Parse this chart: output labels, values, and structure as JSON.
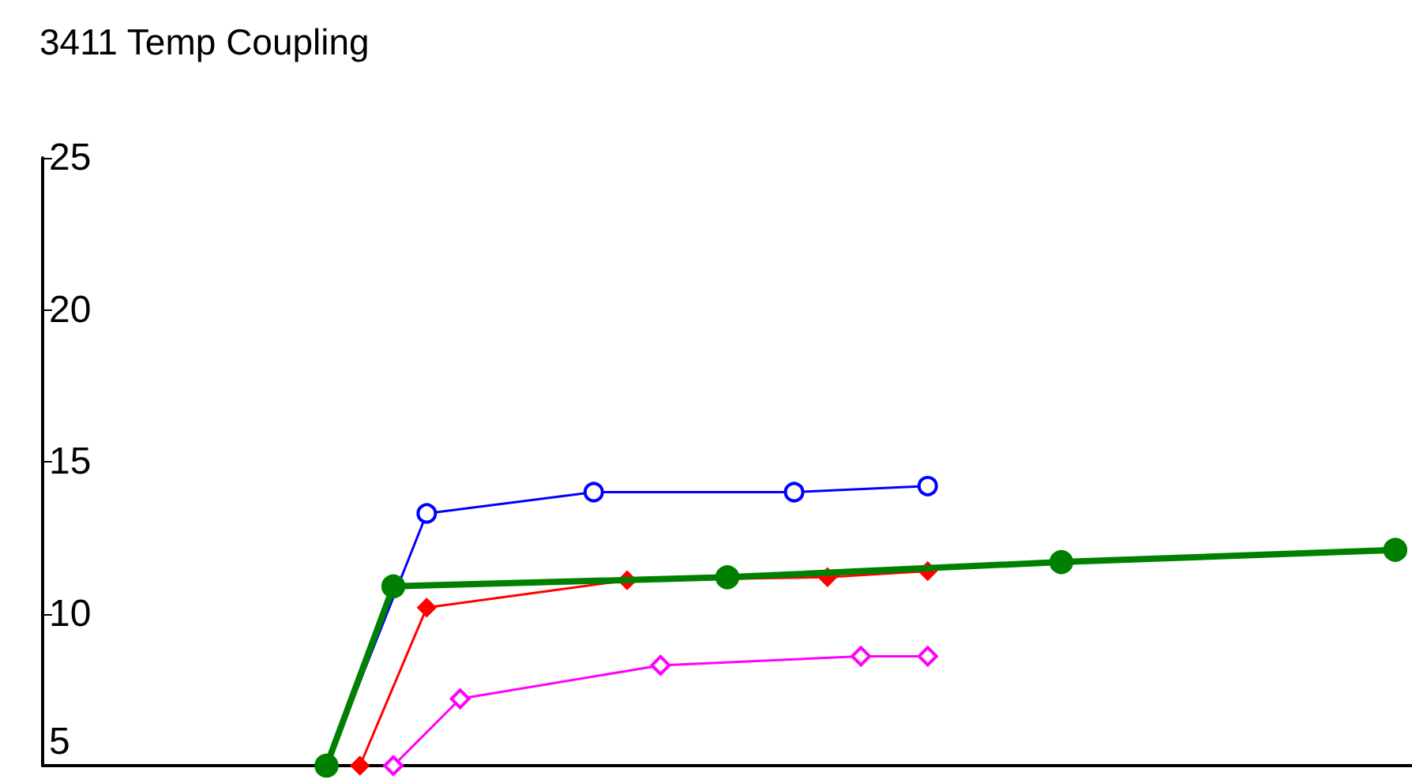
{
  "chart_data": {
    "type": "line",
    "title": "3411 Temp Coupling",
    "categories": [
      null,
      null,
      null,
      null,
      null,
      null,
      null,
      null,
      null,
      null,
      null,
      null,
      null,
      null,
      null,
      null,
      null,
      null,
      null,
      null,
      null,
      null,
      null,
      null,
      null,
      null,
      null,
      null,
      null,
      null,
      null,
      null,
      null,
      null,
      null,
      null,
      null,
      null,
      null,
      null,
      null
    ],
    "ylim": [
      5,
      25
    ],
    "yticks": [
      5,
      10,
      15,
      20,
      25
    ],
    "tick_labels": "y",
    "series": [
      {
        "color": "#0000ff",
        "marker": "circle",
        "values": [
          null,
          null,
          null,
          null,
          null,
          null,
          null,
          null,
          5,
          null,
          null,
          13.3,
          null,
          null,
          null,
          null,
          14.0,
          null,
          null,
          null,
          null,
          null,
          14.0,
          null,
          null,
          null,
          14.2,
          null,
          null,
          null,
          null,
          null,
          null,
          null,
          null,
          null,
          null,
          null,
          null,
          null,
          null
        ]
      },
      {
        "color": "#ff0000",
        "marker": "diamond",
        "values": [
          null,
          null,
          null,
          null,
          null,
          null,
          null,
          null,
          null,
          5,
          null,
          10.2,
          null,
          null,
          null,
          null,
          null,
          11.1,
          null,
          null,
          null,
          null,
          null,
          11.2,
          null,
          null,
          11.4,
          null,
          null,
          null,
          null,
          null,
          null,
          null,
          null,
          null,
          null,
          null,
          null,
          null,
          null
        ]
      },
      {
        "color": "#ff00ff",
        "marker": "diamond",
        "values": [
          null,
          null,
          null,
          null,
          null,
          null,
          null,
          null,
          null,
          null,
          5,
          null,
          7.2,
          null,
          null,
          null,
          null,
          null,
          8.3,
          null,
          null,
          null,
          null,
          null,
          8.6,
          null,
          8.6,
          null,
          null,
          null,
          null,
          null,
          null,
          null,
          null,
          null,
          null,
          null,
          null,
          null,
          null
        ]
      },
      {
        "color": "#008000",
        "marker": "circle",
        "values": [
          null,
          null,
          null,
          null,
          null,
          null,
          null,
          null,
          5,
          null,
          10.9,
          null,
          null,
          null,
          null,
          null,
          null,
          null,
          null,
          null,
          11.2,
          null,
          null,
          null,
          null,
          null,
          null,
          null,
          null,
          null,
          11.7,
          null,
          null,
          null,
          null,
          null,
          null,
          null,
          null,
          null,
          12.1
        ]
      }
    ]
  }
}
